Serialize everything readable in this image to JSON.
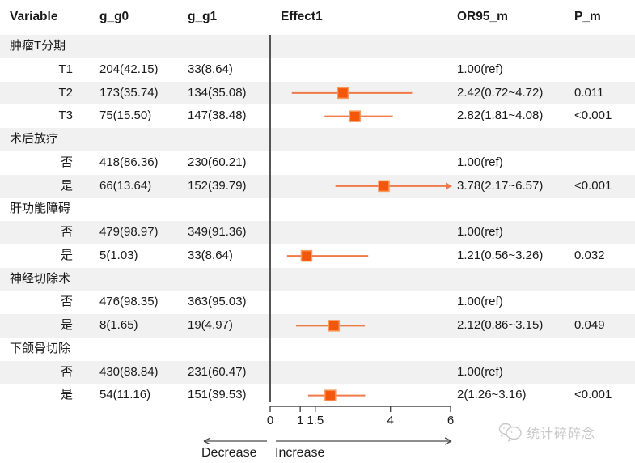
{
  "header": {
    "variable": "Variable",
    "g_g0": "g_g0",
    "g_g1": "g_g1",
    "effect": "Effect1",
    "or95": "OR95_m",
    "p": "P_m"
  },
  "table": {
    "rows": [
      {
        "type": "group",
        "label": "肿瘤T分期",
        "g0": "",
        "g1": "",
        "or_text": "",
        "p": ""
      },
      {
        "type": "item",
        "label": "T1",
        "g0": "204(42.15)",
        "g1": "33(8.64)",
        "or_text": "1.00(ref)",
        "p": ""
      },
      {
        "type": "item",
        "label": "T2",
        "g0": "173(35.74)",
        "g1": "134(35.08)",
        "or_text": "2.42(0.72~4.72)",
        "p": "0.011"
      },
      {
        "type": "item",
        "label": "T3",
        "g0": "75(15.50)",
        "g1": "147(38.48)",
        "or_text": "2.82(1.81~4.08)",
        "p": "<0.001"
      },
      {
        "type": "group",
        "label": "术后放疗",
        "g0": "",
        "g1": "",
        "or_text": "",
        "p": ""
      },
      {
        "type": "item",
        "label": "否",
        "g0": "418(86.36)",
        "g1": "230(60.21)",
        "or_text": "1.00(ref)",
        "p": ""
      },
      {
        "type": "item",
        "label": "是",
        "g0": "66(13.64)",
        "g1": "152(39.79)",
        "or_text": "3.78(2.17~6.57)",
        "p": "<0.001"
      },
      {
        "type": "group",
        "label": "肝功能障碍",
        "g0": "",
        "g1": "",
        "or_text": "",
        "p": ""
      },
      {
        "type": "item",
        "label": "否",
        "g0": "479(98.97)",
        "g1": "349(91.36)",
        "or_text": "1.00(ref)",
        "p": ""
      },
      {
        "type": "item",
        "label": "是",
        "g0": "5(1.03)",
        "g1": "33(8.64)",
        "or_text": "1.21(0.56~3.26)",
        "p": "0.032"
      },
      {
        "type": "group",
        "label": "神经切除术",
        "g0": "",
        "g1": "",
        "or_text": "",
        "p": ""
      },
      {
        "type": "item",
        "label": "否",
        "g0": "476(98.35)",
        "g1": "363(95.03)",
        "or_text": "1.00(ref)",
        "p": ""
      },
      {
        "type": "item",
        "label": "是",
        "g0": "8(1.65)",
        "g1": "19(4.97)",
        "or_text": "2.12(0.86~3.15)",
        "p": "0.049"
      },
      {
        "type": "group",
        "label": "下颌骨切除",
        "g0": "",
        "g1": "",
        "or_text": "",
        "p": ""
      },
      {
        "type": "item",
        "label": "否",
        "g0": "430(88.84)",
        "g1": "231(60.47)",
        "or_text": "1.00(ref)",
        "p": ""
      },
      {
        "type": "item",
        "label": "是",
        "g0": "54(11.16)",
        "g1": "151(39.53)",
        "or_text": "2(1.26~3.16)",
        "p": "<0.001"
      }
    ]
  },
  "chart_data": {
    "type": "scatter",
    "variant": "forest-plot",
    "title": "",
    "xlabel": "",
    "ylabel": "",
    "xlim": [
      0,
      6
    ],
    "xticks": [
      0,
      1,
      1.5,
      4,
      6
    ],
    "refline_x": 0,
    "grid": false,
    "legend": "none",
    "direction_labels": {
      "left": "Decrease",
      "right": "Increase"
    },
    "series": [
      {
        "group": "肿瘤T分期",
        "level": "T2",
        "or": 2.42,
        "ci_low": 0.72,
        "ci_high": 4.72,
        "p": "0.011",
        "row_index": 2
      },
      {
        "group": "肿瘤T分期",
        "level": "T3",
        "or": 2.82,
        "ci_low": 1.81,
        "ci_high": 4.08,
        "p": "<0.001",
        "row_index": 3
      },
      {
        "group": "术后放疗",
        "level": "是",
        "or": 3.78,
        "ci_low": 2.17,
        "ci_high": 6.57,
        "p": "<0.001",
        "row_index": 6,
        "ci_exceeds_axis": true
      },
      {
        "group": "肝功能障碍",
        "level": "是",
        "or": 1.21,
        "ci_low": 0.56,
        "ci_high": 3.26,
        "p": "0.032",
        "row_index": 9
      },
      {
        "group": "神经切除术",
        "level": "是",
        "or": 2.12,
        "ci_low": 0.86,
        "ci_high": 3.15,
        "p": "0.049",
        "row_index": 12
      },
      {
        "group": "下颌骨切除",
        "level": "是",
        "or": 2.0,
        "ci_low": 1.26,
        "ci_high": 3.16,
        "p": "<0.001",
        "row_index": 15
      }
    ]
  },
  "footer": {
    "decrease": "Decrease",
    "increase": "Increase"
  },
  "watermark": {
    "icon": "chat-bubbles-icon",
    "text": "统计碎碎念"
  },
  "colors": {
    "marker": "#f4570b",
    "marker_border": "#f79a5e",
    "ci_line": "#f0794a",
    "refline": "#555555",
    "axis": "#4a4a4a",
    "stripe": "#f0f1f0",
    "watermark": "#c8c8c8",
    "text": "#1a1a1a"
  }
}
